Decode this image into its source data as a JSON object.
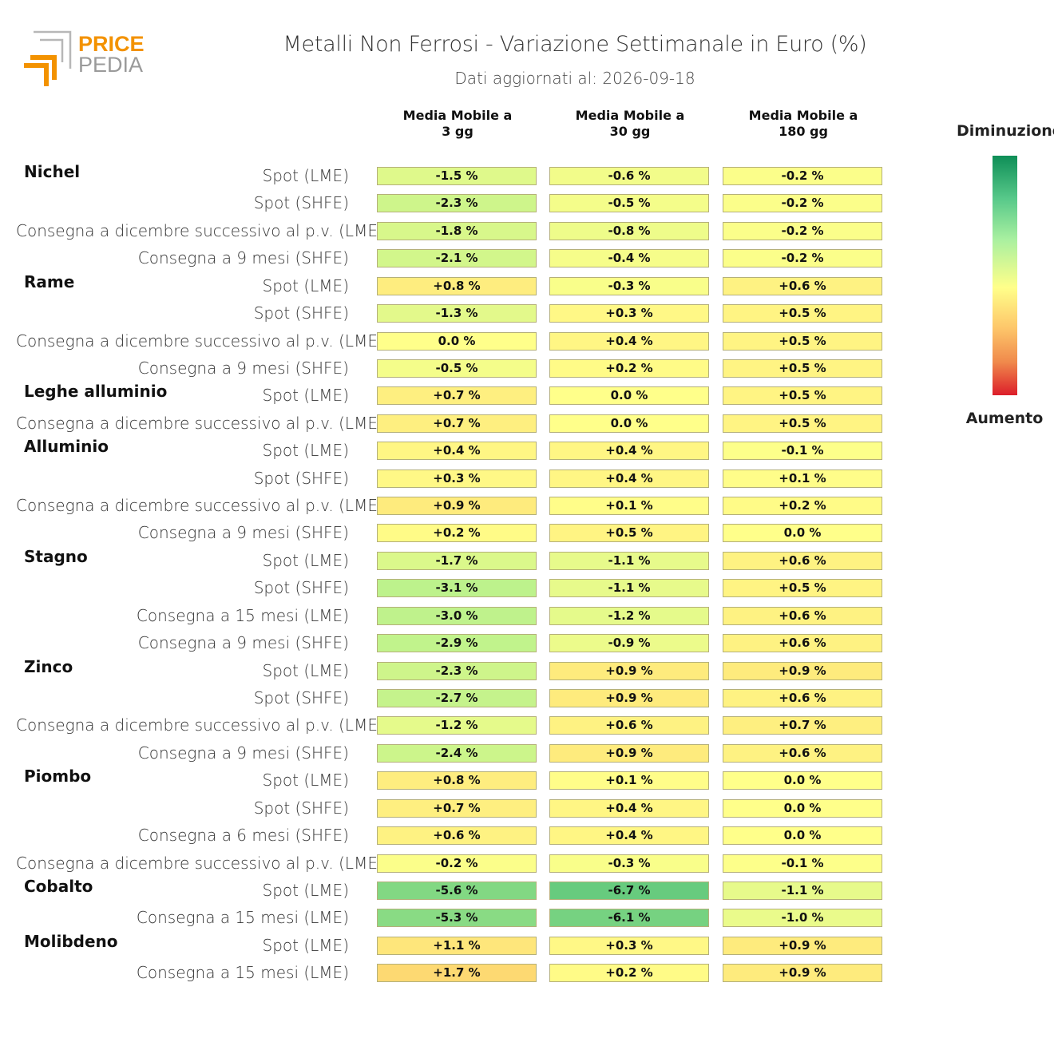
{
  "header": {
    "brand_top": "PRICE",
    "brand_bottom": "PEDIA",
    "title": "Metalli Non Ferrosi - Variazione Settimanale in Euro (%)",
    "subtitle": "Dati aggiornati al: 2026-09-18"
  },
  "legend": {
    "top_label": "Diminuzione",
    "bottom_label": "Aumento",
    "colors": [
      "#0e8e57",
      "#a9f0a0",
      "#ffff8a",
      "#fdc66a",
      "#dc1e2a"
    ]
  },
  "chart_data": {
    "type": "heatmap",
    "columns": [
      "Media Mobile a\n3 gg",
      "Media Mobile a\n30 gg",
      "Media Mobile a\n180 gg"
    ],
    "unit": "%",
    "groups": [
      {
        "name": "Nichel",
        "rows": [
          {
            "label": "Spot (LME)",
            "values": [
              "-1.5 %",
              "-0.6 %",
              "-0.2 %"
            ]
          },
          {
            "label": "Spot (SHFE)",
            "values": [
              "-2.3 %",
              "-0.5 %",
              "-0.2 %"
            ]
          },
          {
            "label": "Consegna a dicembre successivo al p.v. (LME)",
            "values": [
              "-1.8 %",
              "-0.8 %",
              "-0.2 %"
            ]
          },
          {
            "label": "Consegna a 9 mesi (SHFE)",
            "values": [
              "-2.1 %",
              "-0.4 %",
              "-0.2 %"
            ]
          }
        ]
      },
      {
        "name": "Rame",
        "rows": [
          {
            "label": "Spot (LME)",
            "values": [
              "+0.8 %",
              "-0.3 %",
              "+0.6 %"
            ]
          },
          {
            "label": "Spot (SHFE)",
            "values": [
              "-1.3 %",
              "+0.3 %",
              "+0.5 %"
            ]
          },
          {
            "label": "Consegna a dicembre successivo al p.v. (LME)",
            "values": [
              "0.0 %",
              "+0.4 %",
              "+0.5 %"
            ]
          },
          {
            "label": "Consegna a 9 mesi (SHFE)",
            "values": [
              "-0.5 %",
              "+0.2 %",
              "+0.5 %"
            ]
          }
        ]
      },
      {
        "name": "Leghe alluminio",
        "rows": [
          {
            "label": "Spot (LME)",
            "values": [
              "+0.7 %",
              "0.0 %",
              "+0.5 %"
            ]
          },
          {
            "label": "Consegna a dicembre successivo al p.v. (LME)",
            "values": [
              "+0.7 %",
              "0.0 %",
              "+0.5 %"
            ]
          }
        ]
      },
      {
        "name": "Alluminio",
        "rows": [
          {
            "label": "Spot (LME)",
            "values": [
              "+0.4 %",
              "+0.4 %",
              "-0.1 %"
            ]
          },
          {
            "label": "Spot (SHFE)",
            "values": [
              "+0.3 %",
              "+0.4 %",
              "+0.1 %"
            ]
          },
          {
            "label": "Consegna a dicembre successivo al p.v. (LME)",
            "values": [
              "+0.9 %",
              "+0.1 %",
              "+0.2 %"
            ]
          },
          {
            "label": "Consegna a 9 mesi (SHFE)",
            "values": [
              "+0.2 %",
              "+0.5 %",
              "0.0 %"
            ]
          }
        ]
      },
      {
        "name": "Stagno",
        "rows": [
          {
            "label": "Spot (LME)",
            "values": [
              "-1.7 %",
              "-1.1 %",
              "+0.6 %"
            ]
          },
          {
            "label": "Spot (SHFE)",
            "values": [
              "-3.1 %",
              "-1.1 %",
              "+0.5 %"
            ]
          },
          {
            "label": "Consegna a 15 mesi (LME)",
            "values": [
              "-3.0 %",
              "-1.2 %",
              "+0.6 %"
            ]
          },
          {
            "label": "Consegna a 9 mesi (SHFE)",
            "values": [
              "-2.9 %",
              "-0.9 %",
              "+0.6 %"
            ]
          }
        ]
      },
      {
        "name": "Zinco",
        "rows": [
          {
            "label": "Spot (LME)",
            "values": [
              "-2.3 %",
              "+0.9 %",
              "+0.9 %"
            ]
          },
          {
            "label": "Spot (SHFE)",
            "values": [
              "-2.7 %",
              "+0.9 %",
              "+0.6 %"
            ]
          },
          {
            "label": "Consegna a dicembre successivo al p.v. (LME)",
            "values": [
              "-1.2 %",
              "+0.6 %",
              "+0.7 %"
            ]
          },
          {
            "label": "Consegna a 9 mesi (SHFE)",
            "values": [
              "-2.4 %",
              "+0.9 %",
              "+0.6 %"
            ]
          }
        ]
      },
      {
        "name": "Piombo",
        "rows": [
          {
            "label": "Spot (LME)",
            "values": [
              "+0.8 %",
              "+0.1 %",
              "0.0 %"
            ]
          },
          {
            "label": "Spot (SHFE)",
            "values": [
              "+0.7 %",
              "+0.4 %",
              "0.0 %"
            ]
          },
          {
            "label": "Consegna a 6 mesi (SHFE)",
            "values": [
              "+0.6 %",
              "+0.4 %",
              "0.0 %"
            ]
          },
          {
            "label": "Consegna a dicembre successivo al p.v. (LME)",
            "values": [
              "-0.2 %",
              "-0.3 %",
              "-0.1 %"
            ]
          }
        ]
      },
      {
        "name": "Cobalto",
        "rows": [
          {
            "label": "Spot (LME)",
            "values": [
              "-5.6 %",
              "-6.7 %",
              "-1.1 %"
            ]
          },
          {
            "label": "Consegna a 15 mesi (LME)",
            "values": [
              "-5.3 %",
              "-6.1 %",
              "-1.0 %"
            ]
          }
        ]
      },
      {
        "name": "Molibdeno",
        "rows": [
          {
            "label": "Spot (LME)",
            "values": [
              "+1.1 %",
              "+0.3 %",
              "+0.9 %"
            ]
          },
          {
            "label": "Consegna a 15 mesi (LME)",
            "values": [
              "+1.7 %",
              "+0.2 %",
              "+0.9 %"
            ]
          }
        ]
      }
    ]
  }
}
